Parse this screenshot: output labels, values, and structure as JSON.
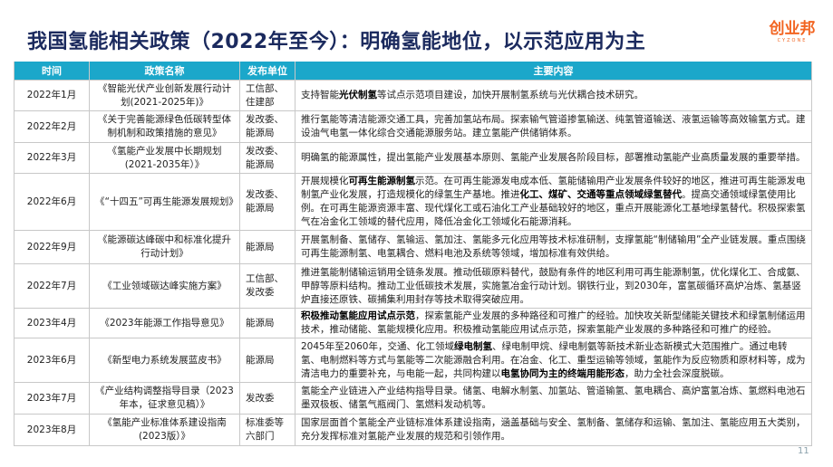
{
  "title": "我国氢能相关政策（2022年至今）：明确氢能地位，以示范应用为主",
  "logo": {
    "cn": "创业邦",
    "en": "CYZONE",
    "color": "#f26522"
  },
  "colors": {
    "header_bg": "#1ba7ca",
    "title": "#1b2a5e"
  },
  "table": {
    "headers": [
      "时间",
      "政策名称",
      "发布单位",
      "主要内容"
    ],
    "rows": [
      {
        "date": "2022年1月",
        "policy": "《智能光伏产业创新发展行动计划(2021-2025年)》",
        "org": "工信部、住建部",
        "content": [
          {
            "t": "支持智能"
          },
          {
            "t": "光伏制氢",
            "b": true
          },
          {
            "t": "等试点示范项目建设，加快开展制氢系统与光伏耦合技术研究。"
          }
        ]
      },
      {
        "date": "2022年2月",
        "policy": "《关于完善能源绿色低碳转型体制机制和政策措施的意见》",
        "org": "发改委、能源局",
        "content": [
          {
            "t": "推行氢能等清洁能源交通工具，完善加氢站布局。探索输气管道掺氢输送、纯氢管道输送、液氢运输等高效输氢方式。建设油气电氢一体化综合交通能源服务站。建立氢能产供储销体系。"
          }
        ]
      },
      {
        "date": "2022年3月",
        "policy": "《氢能产业发展中长期规划(2021-2035年）》",
        "org": "发改委、能源局",
        "content": [
          {
            "t": "明确氢的能源属性，提出氢能产业发展基本原则、氢能产业发展各阶段目标，部署推动氢能产业高质量发展的重要举措。"
          }
        ]
      },
      {
        "date": "2022年6月",
        "policy": "《“十四五”可再生能源发展规划》",
        "org": "发改委、能源局",
        "content": [
          {
            "t": "开展规模化"
          },
          {
            "t": "可再生能源制氢",
            "b": true
          },
          {
            "t": "示范。在可再生能源发电成本低、氢能储输用产业发展条件较好的地区，推进可再生能源发电制氢产业化发展，打造规模化的绿氢生产基地。推进"
          },
          {
            "t": "化工、煤矿、交通等重点领域绿氢替代",
            "b": true
          },
          {
            "t": "。提高交通领域绿氢使用比例。在可再生能源资源丰富、现代煤化工或石油化工产业基础较好的地区，重点开展能源化工基地绿氢替代。积极探索氢气在冶金化工领域的替代应用，降低冶金化工领域化石能源消耗。"
          }
        ]
      },
      {
        "date": "2022年9月",
        "policy": "《能源碳达峰碳中和标准化提升行动计划》",
        "org": "能源局",
        "content": [
          {
            "t": "开展氢制备、氢储存、氢输运、氢加注、氢能多元化应用等技术标准研制，支撑氢能“制储输用”全产业链发展。重点围绕可再生能源制氢、电氢耦合、燃料电池及系统等领域，增加标准有效供给。"
          }
        ]
      },
      {
        "date": "2022年7月",
        "policy": "《工业领域碳达峰实施方案》",
        "org": "工信部、发改委",
        "content": [
          {
            "t": "推进氢能制储输运销用全链条发展。推动低碳原料替代，鼓励有条件的地区利用可再生能源制氢，优化煤化工、合成氨、甲醇等原料结构。推动工业低碳技术发展，实施氢冶金行动计划。钢铁行业，到2030年，富氢碳循环高炉冶炼、氢基竖炉直接还原铁、碳捕集利用封存等技术取得突破应用。"
          }
        ]
      },
      {
        "date": "2023年4月",
        "policy": "《2023年能源工作指导意见》",
        "org": "能源局",
        "content": [
          {
            "t": "积极推动氢能应用试点示范",
            "b": true
          },
          {
            "t": "，探索氢能产业发展的多种路径和可推广的经验。加快攻关新型储能关键技术和绿氢制储运用技术，推动储能、氢能规模化应用。积极推动氢能应用试点示范，探索氢能产业发展的多种路径和可推广的经验。"
          }
        ]
      },
      {
        "date": "2023年6月",
        "policy": "《新型电力系统发展蓝皮书》",
        "org": "能源局",
        "content": [
          {
            "t": "2045年至2060年，交通、化工领域"
          },
          {
            "t": "绿电制氢",
            "b": true
          },
          {
            "t": "、绿电制甲烷、绿电制氨等新技术新业态新模式大范围推广。通过电转氢、电制燃料等方式与氢能等二次能源融合利用。在冶金、化工、重型运输等领域，氢能作为反应物质和原材料等，成为清洁电力的重要补充，与电能一起，共同构建以"
          },
          {
            "t": "电氢协同为主的终端用能形态",
            "b": true
          },
          {
            "t": "，助力全社会深度脱碳。"
          }
        ]
      },
      {
        "date": "2023年7月",
        "policy": "《产业结构调整指导目录（2023 年本，征求意见稿）》",
        "org": "发改委",
        "content": [
          {
            "t": "氢能全产业链进入产业结构指导目录。储氢、电解水制氢、加氢站、管道输氢、氢电耦合、高炉富氢冶炼、氢燃料电池石墨双极板、储氢气瓶阀门、氢燃料发动机等。"
          }
        ]
      },
      {
        "date": "2023年8月",
        "policy": "《氢能产业标准体系建设指南(2023版）》",
        "org": "标准委等六部门",
        "content": [
          {
            "t": "国家层面首个氢能全产业链标准体系建设指南，涵盖基础与安全、氢制备、氢储存和运输、氢加注、氢能应用五大类别，充分发挥标准对氢能产业发展的规范和引领作用。"
          }
        ]
      }
    ]
  },
  "page_number": "11"
}
